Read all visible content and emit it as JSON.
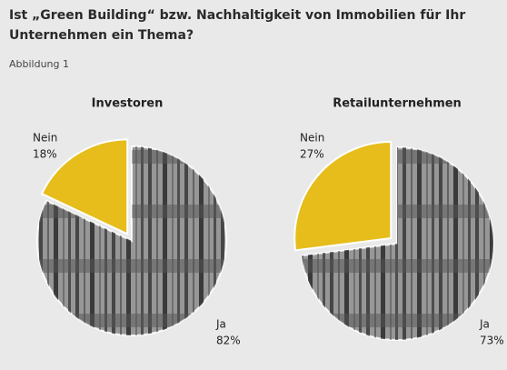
{
  "title": "Ist „Green Building“ bzw. Nachhaltigkeit von Immobilien für Ihr Unternehmen ein Thema?",
  "figure_label": "Abbildung 1",
  "chart_data": [
    {
      "type": "pie",
      "title": "Investoren",
      "categories": [
        "Nein",
        "Ja"
      ],
      "values": [
        18,
        82
      ],
      "value_labels": [
        "18%",
        "82%"
      ],
      "colors": [
        "#e6bd1a",
        "#8c8c8c"
      ]
    },
    {
      "type": "pie",
      "title": "Retailunternehmen",
      "categories": [
        "Nein",
        "Ja"
      ],
      "values": [
        27,
        73
      ],
      "value_labels": [
        "27%",
        "73%"
      ],
      "colors": [
        "#e6bd1a",
        "#8c8c8c"
      ]
    }
  ]
}
